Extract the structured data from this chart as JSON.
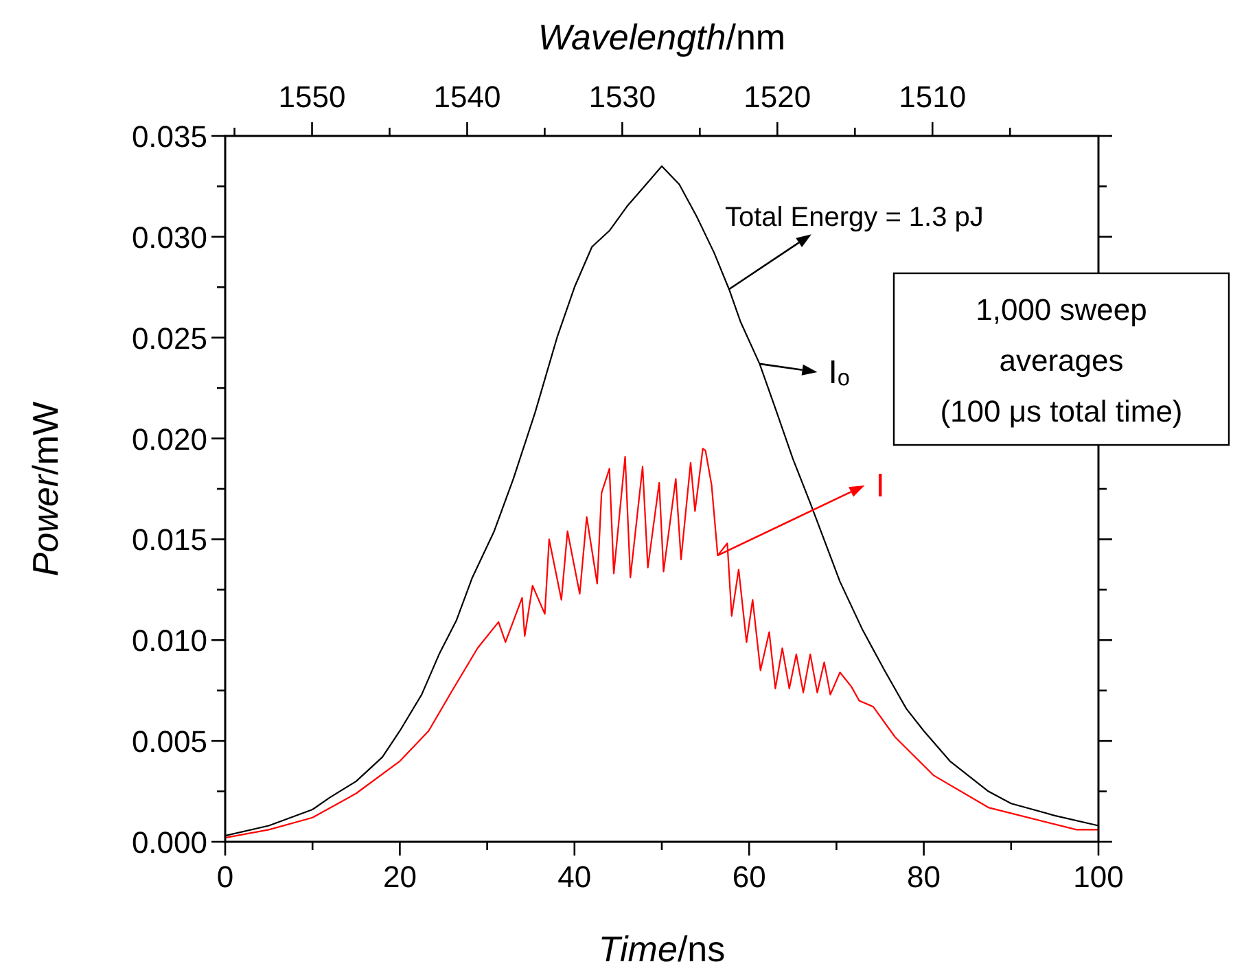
{
  "chart_data": {
    "type": "line",
    "xlabel": "Time/ns",
    "ylabel": "Power/mW",
    "x2label": "Wavelength/nm",
    "xlim": [
      0,
      100
    ],
    "xticks": [
      0,
      {
        "value": 10,
        "label": null
      },
      20,
      {
        "value": 30,
        "label": null
      },
      40,
      {
        "value": 50,
        "label": null
      },
      60,
      {
        "value": 70,
        "label": null
      },
      80,
      {
        "value": 90,
        "label": null
      },
      100
    ],
    "ylim": [
      0,
      0.035
    ],
    "yticks": [
      {
        "value": 0,
        "label": "0.000"
      },
      {
        "value": 0.0025,
        "label": null
      },
      {
        "value": 0.005,
        "label": "0.005"
      },
      {
        "value": 0.0075,
        "label": null
      },
      {
        "value": 0.01,
        "label": "0.010"
      },
      {
        "value": 0.0125,
        "label": null
      },
      {
        "value": 0.015,
        "label": "0.015"
      },
      {
        "value": 0.0175,
        "label": null
      },
      {
        "value": 0.02,
        "label": "0.020"
      },
      {
        "value": 0.0225,
        "label": null
      },
      {
        "value": 0.025,
        "label": "0.025"
      },
      {
        "value": 0.0275,
        "label": null
      },
      {
        "value": 0.03,
        "label": "0.030"
      },
      {
        "value": 0.0325,
        "label": null
      },
      {
        "value": 0.035,
        "label": "0.035"
      }
    ],
    "x2lim": [
      1555.6,
      1499.3
    ],
    "x2ticks": [
      {
        "value": 1555,
        "label": null
      },
      1550,
      {
        "value": 1545,
        "label": null
      },
      1540,
      {
        "value": 1535,
        "label": null
      },
      1530,
      {
        "value": 1525,
        "label": null
      },
      1520,
      {
        "value": 1515,
        "label": null
      },
      1510,
      {
        "value": 1505,
        "label": null
      }
    ],
    "grid": false,
    "legend": "right",
    "marker": "none",
    "line_style": "solid",
    "series": [
      {
        "name": "Iₒ",
        "color": "#000000",
        "x": [
          0,
          5,
          10,
          12,
          15,
          18,
          20,
          22.5,
          24.5,
          26.5,
          28.3,
          30.8,
          33,
          35.5,
          38,
          40,
          42,
          44,
          46,
          48,
          50,
          52,
          54,
          56,
          57.7,
          59,
          61.2,
          63,
          65,
          67,
          70.4,
          73,
          75.5,
          78,
          80,
          83,
          87.4,
          90,
          95,
          100
        ],
        "values": [
          0.0003,
          0.0008,
          0.0016,
          0.0022,
          0.003,
          0.0042,
          0.0055,
          0.0073,
          0.0093,
          0.011,
          0.0131,
          0.0154,
          0.018,
          0.0213,
          0.025,
          0.0275,
          0.0295,
          0.0303,
          0.0315,
          0.0325,
          0.0335,
          0.0326,
          0.031,
          0.0292,
          0.0274,
          0.0258,
          0.0237,
          0.0215,
          0.019,
          0.0168,
          0.0129,
          0.0105,
          0.0085,
          0.0066,
          0.0055,
          0.004,
          0.0025,
          0.0019,
          0.0013,
          0.0008
        ]
      },
      {
        "name": "I",
        "color": "#ff0000",
        "x": [
          0,
          5,
          10,
          15,
          20,
          23.3,
          26,
          28.9,
          31.3,
          32.1,
          34,
          34.3,
          35.2,
          36.6,
          37.1,
          38.5,
          39.2,
          40.6,
          41.4,
          42.6,
          43.1,
          44,
          44.5,
          45.8,
          46.4,
          47.8,
          48.4,
          49.7,
          50.2,
          51.6,
          52.2,
          53.3,
          53.8,
          54.7,
          55,
          55.7,
          56.4,
          57.5,
          58,
          58.8,
          59.7,
          60.4,
          61.3,
          62.3,
          63,
          63.8,
          64.6,
          65.4,
          66.2,
          67,
          67.8,
          68.6,
          69.3,
          70.4,
          71.7,
          72.6,
          74.2,
          76.7,
          81.1,
          87.4,
          97.5,
          100
        ],
        "values": [
          0.0002,
          0.0006,
          0.0012,
          0.0024,
          0.004,
          0.0055,
          0.0075,
          0.0096,
          0.0109,
          0.0099,
          0.0121,
          0.0102,
          0.0127,
          0.0113,
          0.015,
          0.012,
          0.0154,
          0.0123,
          0.0161,
          0.0128,
          0.0173,
          0.0185,
          0.0133,
          0.0191,
          0.0131,
          0.0186,
          0.0136,
          0.0178,
          0.0134,
          0.018,
          0.014,
          0.0188,
          0.0164,
          0.0195,
          0.0194,
          0.0177,
          0.0142,
          0.0148,
          0.0112,
          0.0135,
          0.0099,
          0.012,
          0.0085,
          0.0104,
          0.0076,
          0.0096,
          0.0076,
          0.0093,
          0.0074,
          0.0093,
          0.0074,
          0.0089,
          0.0073,
          0.0084,
          0.0077,
          0.007,
          0.0067,
          0.0052,
          0.0033,
          0.0017,
          0.0006,
          0.0006
        ]
      }
    ],
    "annotations": [
      {
        "text": "Total Energy = 1.3 pJ",
        "x": 57.7,
        "y": 0.0274
      },
      "1,000 sweep averages (100 μs total time)"
    ]
  }
}
